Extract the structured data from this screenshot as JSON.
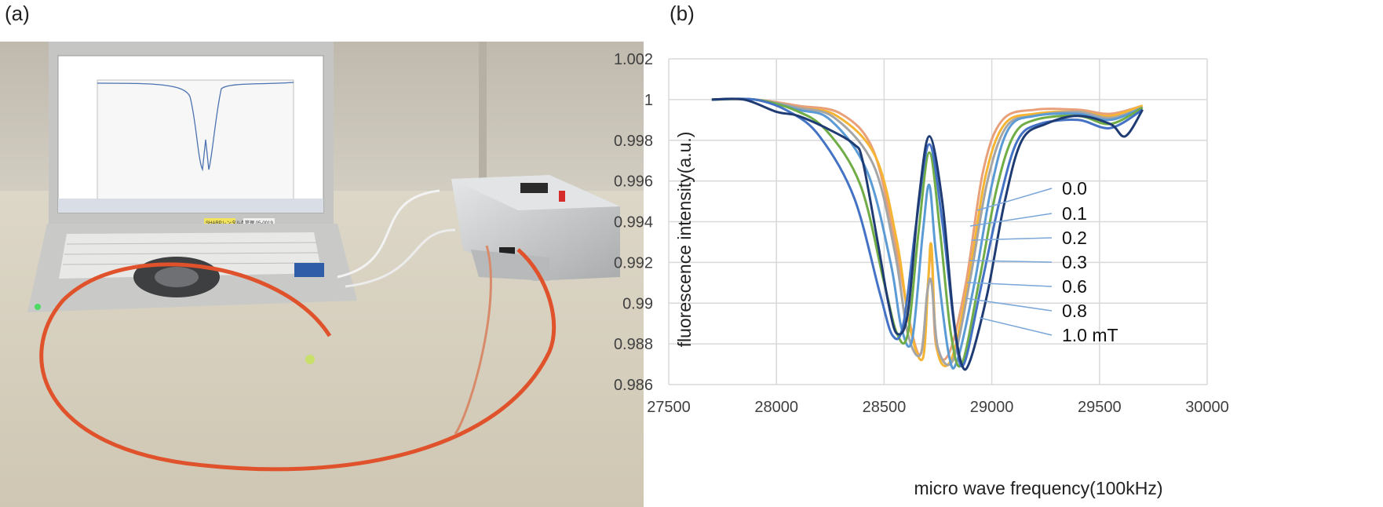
{
  "panels": {
    "a_label": "(a)",
    "b_label": "(b)"
  },
  "photo": {
    "description_icon": "laptop-with-odmr-setup-photo",
    "laptop_sticker_1": "SHARPレンタル品",
    "laptop_sticker_2": "管理 05-0019",
    "colors": {
      "fiber": "#e0522b",
      "box": "#c9cbcd",
      "laptop": "#c8c9c7"
    }
  },
  "chart_data": {
    "type": "line",
    "xlabel": "micro wave frequency(100kHz)",
    "ylabel": "fluorescence intensity(a.u.)",
    "xlim": [
      27500,
      30000
    ],
    "ylim": [
      0.986,
      1.002
    ],
    "x_ticks": [
      "27500",
      "28000",
      "28500",
      "29000",
      "29500",
      "30000"
    ],
    "y_ticks": [
      "0.986",
      "0.988",
      "0.99",
      "0.992",
      "0.994",
      "0.996",
      "0.998",
      "1",
      "1.002"
    ],
    "grid": true,
    "legend_position": "right",
    "series": [
      {
        "name": "0.0",
        "color": "#e8a07a",
        "points": [
          [
            27700,
            1.0
          ],
          [
            27900,
            1.0
          ],
          [
            28100,
            0.9997
          ],
          [
            28300,
            0.9993
          ],
          [
            28450,
            0.9975
          ],
          [
            28550,
            0.993
          ],
          [
            28620,
            0.989
          ],
          [
            28670,
            0.9875
          ],
          [
            28700,
            0.9905
          ],
          [
            28720,
            0.9925
          ],
          [
            28740,
            0.988
          ],
          [
            28800,
            0.9875
          ],
          [
            28880,
            0.991
          ],
          [
            28960,
            0.9965
          ],
          [
            29050,
            0.999
          ],
          [
            29200,
            0.9995
          ],
          [
            29400,
            0.9995
          ],
          [
            29550,
            0.9993
          ],
          [
            29700,
            0.9997
          ]
        ]
      },
      {
        "name": "0.1",
        "color": "#f5b533",
        "points": [
          [
            27700,
            1.0
          ],
          [
            27900,
            1.0
          ],
          [
            28100,
            0.9996
          ],
          [
            28280,
            0.9992
          ],
          [
            28460,
            0.9972
          ],
          [
            28560,
            0.993
          ],
          [
            28620,
            0.9888
          ],
          [
            28680,
            0.9873
          ],
          [
            28705,
            0.9912
          ],
          [
            28720,
            0.9928
          ],
          [
            28745,
            0.9878
          ],
          [
            28810,
            0.9872
          ],
          [
            28890,
            0.991
          ],
          [
            28970,
            0.9962
          ],
          [
            29060,
            0.9988
          ],
          [
            29200,
            0.9993
          ],
          [
            29400,
            0.9994
          ],
          [
            29550,
            0.9992
          ],
          [
            29700,
            0.9997
          ]
        ]
      },
      {
        "name": "0.2",
        "color": "#a5a5a5",
        "points": [
          [
            27700,
            1.0
          ],
          [
            27900,
            1.0
          ],
          [
            28100,
            0.9996
          ],
          [
            28270,
            0.9991
          ],
          [
            28450,
            0.9968
          ],
          [
            28550,
            0.9925
          ],
          [
            28610,
            0.9885
          ],
          [
            28670,
            0.9875
          ],
          [
            28700,
            0.9905
          ],
          [
            28720,
            0.991
          ],
          [
            28750,
            0.9878
          ],
          [
            28820,
            0.9872
          ],
          [
            28900,
            0.9912
          ],
          [
            28980,
            0.996
          ],
          [
            29070,
            0.9987
          ],
          [
            29200,
            0.9992
          ],
          [
            29400,
            0.9994
          ],
          [
            29550,
            0.9991
          ],
          [
            29700,
            0.9996
          ]
        ]
      },
      {
        "name": "0.3",
        "color": "#5b9bd5",
        "points": [
          [
            27700,
            1.0
          ],
          [
            27900,
            1.0
          ],
          [
            28100,
            0.9995
          ],
          [
            28250,
            0.999
          ],
          [
            28420,
            0.9965
          ],
          [
            28530,
            0.992
          ],
          [
            28580,
            0.9888
          ],
          [
            28630,
            0.9882
          ],
          [
            28680,
            0.9935
          ],
          [
            28710,
            0.9958
          ],
          [
            28740,
            0.9925
          ],
          [
            28800,
            0.9875
          ],
          [
            28840,
            0.9872
          ],
          [
            28920,
            0.991
          ],
          [
            29000,
            0.9958
          ],
          [
            29080,
            0.9986
          ],
          [
            29200,
            0.9992
          ],
          [
            29400,
            0.9993
          ],
          [
            29550,
            0.999
          ],
          [
            29700,
            0.9996
          ]
        ]
      },
      {
        "name": "0.6",
        "color": "#70ad47",
        "points": [
          [
            27700,
            1.0
          ],
          [
            27900,
            1.0
          ],
          [
            28080,
            0.9995
          ],
          [
            28230,
            0.9985
          ],
          [
            28390,
            0.9958
          ],
          [
            28500,
            0.991
          ],
          [
            28560,
            0.9885
          ],
          [
            28610,
            0.9885
          ],
          [
            28660,
            0.9935
          ],
          [
            28710,
            0.9974
          ],
          [
            28760,
            0.9935
          ],
          [
            28810,
            0.9885
          ],
          [
            28860,
            0.987
          ],
          [
            28940,
            0.991
          ],
          [
            29020,
            0.9955
          ],
          [
            29100,
            0.9982
          ],
          [
            29200,
            0.999
          ],
          [
            29400,
            0.9992
          ],
          [
            29550,
            0.9988
          ],
          [
            29700,
            0.9996
          ]
        ]
      },
      {
        "name": "0.8",
        "color": "#4472c4",
        "points": [
          [
            27700,
            1.0
          ],
          [
            27900,
            1.0
          ],
          [
            28060,
            0.9994
          ],
          [
            28200,
            0.9982
          ],
          [
            28360,
            0.9952
          ],
          [
            28480,
            0.9905
          ],
          [
            28540,
            0.9884
          ],
          [
            28590,
            0.989
          ],
          [
            28650,
            0.994
          ],
          [
            28710,
            0.9978
          ],
          [
            28770,
            0.994
          ],
          [
            28830,
            0.9885
          ],
          [
            28870,
            0.987
          ],
          [
            28950,
            0.9908
          ],
          [
            29040,
            0.9952
          ],
          [
            29120,
            0.998
          ],
          [
            29220,
            0.9988
          ],
          [
            29400,
            0.999
          ],
          [
            29550,
            0.9986
          ],
          [
            29700,
            0.9995
          ]
        ]
      },
      {
        "name": "1.0 mT",
        "color": "#1f3b73",
        "points": [
          [
            27700,
            1.0
          ],
          [
            27850,
            1.0
          ],
          [
            28000,
            0.9994
          ],
          [
            28100,
            0.9992
          ],
          [
            28250,
            0.9985
          ],
          [
            28360,
            0.9978
          ],
          [
            28400,
            0.997
          ],
          [
            28470,
            0.993
          ],
          [
            28520,
            0.99
          ],
          [
            28560,
            0.9885
          ],
          [
            28610,
            0.9895
          ],
          [
            28660,
            0.995
          ],
          [
            28710,
            0.9982
          ],
          [
            28770,
            0.995
          ],
          [
            28820,
            0.9895
          ],
          [
            28860,
            0.987
          ],
          [
            28900,
            0.9872
          ],
          [
            28980,
            0.9905
          ],
          [
            29060,
            0.995
          ],
          [
            29140,
            0.998
          ],
          [
            29250,
            0.9988
          ],
          [
            29400,
            0.9992
          ],
          [
            29550,
            0.9988
          ],
          [
            29620,
            0.9982
          ],
          [
            29700,
            0.9995
          ]
        ]
      }
    ]
  }
}
